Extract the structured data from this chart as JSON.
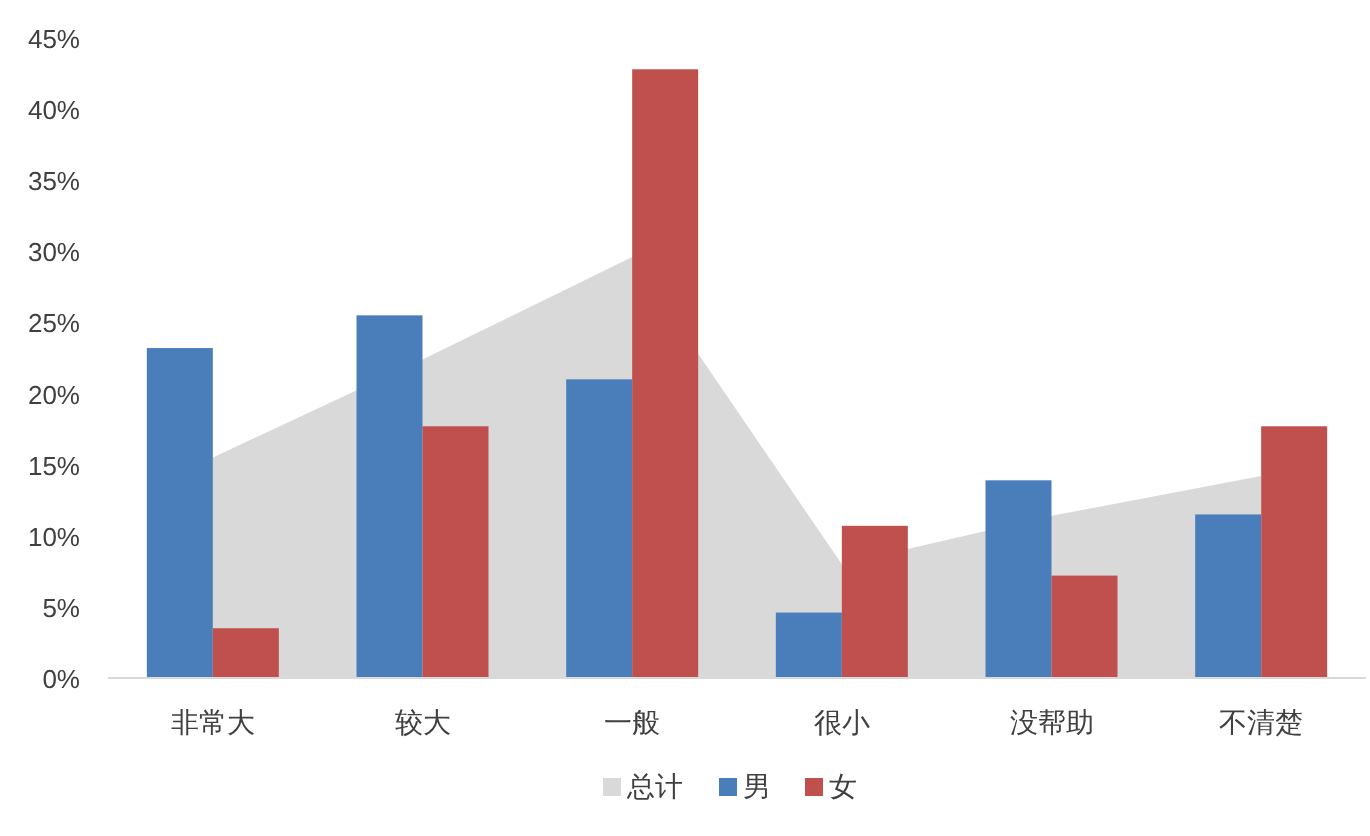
{
  "chart_data": {
    "type": "bar",
    "categories": [
      "非常大",
      "较大",
      "一般",
      "很小",
      "没帮助",
      "不清楚"
    ],
    "series": [
      {
        "name": "总计",
        "type": "area",
        "color": "#d9d9d9",
        "values": [
          15.5,
          22.4,
          29.6,
          8.0,
          11.4,
          14.2
        ]
      },
      {
        "name": "男",
        "color": "#4a7ebb",
        "values": [
          23.2,
          25.5,
          21.0,
          4.6,
          13.9,
          11.5
        ]
      },
      {
        "name": "女",
        "color": "#c0504d",
        "values": [
          3.5,
          17.7,
          42.8,
          10.7,
          7.2,
          17.7
        ]
      }
    ],
    "ylim": [
      0,
      45
    ],
    "yticks": [
      {
        "value": 0,
        "label": "0%"
      },
      {
        "value": 5,
        "label": "5%"
      },
      {
        "value": 10,
        "label": "10%"
      },
      {
        "value": 15,
        "label": "15%"
      },
      {
        "value": 20,
        "label": "20%"
      },
      {
        "value": 25,
        "label": "25%"
      },
      {
        "value": 30,
        "label": "30%"
      },
      {
        "value": 35,
        "label": "35%"
      },
      {
        "value": 40,
        "label": "40%"
      },
      {
        "value": 45,
        "label": "45%"
      }
    ],
    "grid": false,
    "legend": "bottom"
  }
}
